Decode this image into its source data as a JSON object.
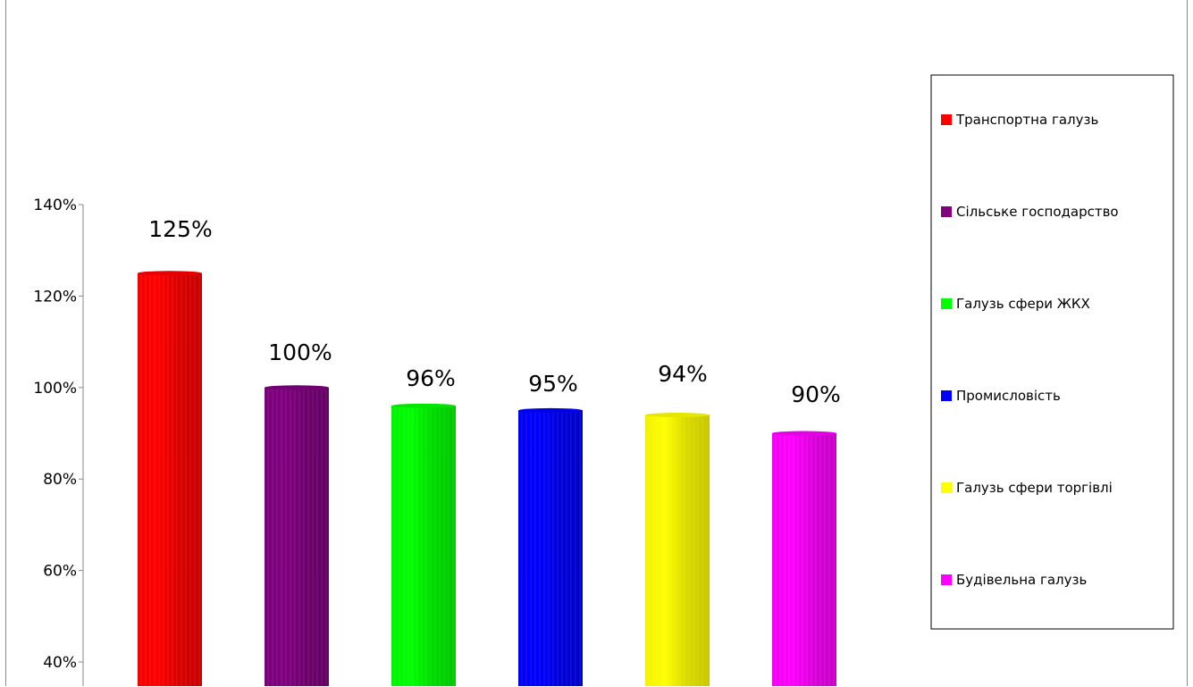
{
  "chart_data": {
    "type": "bar",
    "categories": [
      "Транспортна галузь",
      "Сільське господарство",
      "Галузь сфери ЖКХ",
      "Промисловість",
      "Галузь сфери торгівлі",
      "Будівельна галузь"
    ],
    "values": [
      1.25,
      1.0,
      0.96,
      0.95,
      0.94,
      0.9
    ],
    "data_labels": [
      "125%",
      "100%",
      "96%",
      "95%",
      "94%",
      "90%"
    ],
    "colors": [
      "#ff0000",
      "#800080",
      "#00ff00",
      "#0000ff",
      "#ffff00",
      "#ff00ff"
    ],
    "y_ticks": [
      {
        "value": 0.4,
        "label": "40%"
      },
      {
        "value": 0.6,
        "label": "60%"
      },
      {
        "value": 0.8,
        "label": "80%"
      },
      {
        "value": 1.0,
        "label": "100%"
      },
      {
        "value": 1.2,
        "label": "120%"
      },
      {
        "value": 1.4,
        "label": "140%"
      }
    ],
    "ylim": [
      0.4,
      1.4
    ],
    "legend": {
      "position": "right",
      "entries": [
        {
          "label": "Транспортна галузь",
          "color": "#ff0000"
        },
        {
          "label": "Сільське господарство",
          "color": "#800080"
        },
        {
          "label": "Галузь сфери ЖКХ",
          "color": "#00ff00"
        },
        {
          "label": "Промисловість",
          "color": "#0000ff"
        },
        {
          "label": "Галузь сфери торгівлі",
          "color": "#ffff00"
        },
        {
          "label": "Будівельна галузь",
          "color": "#ff00ff"
        }
      ]
    },
    "grid": false,
    "bar_style": "cylinder"
  }
}
